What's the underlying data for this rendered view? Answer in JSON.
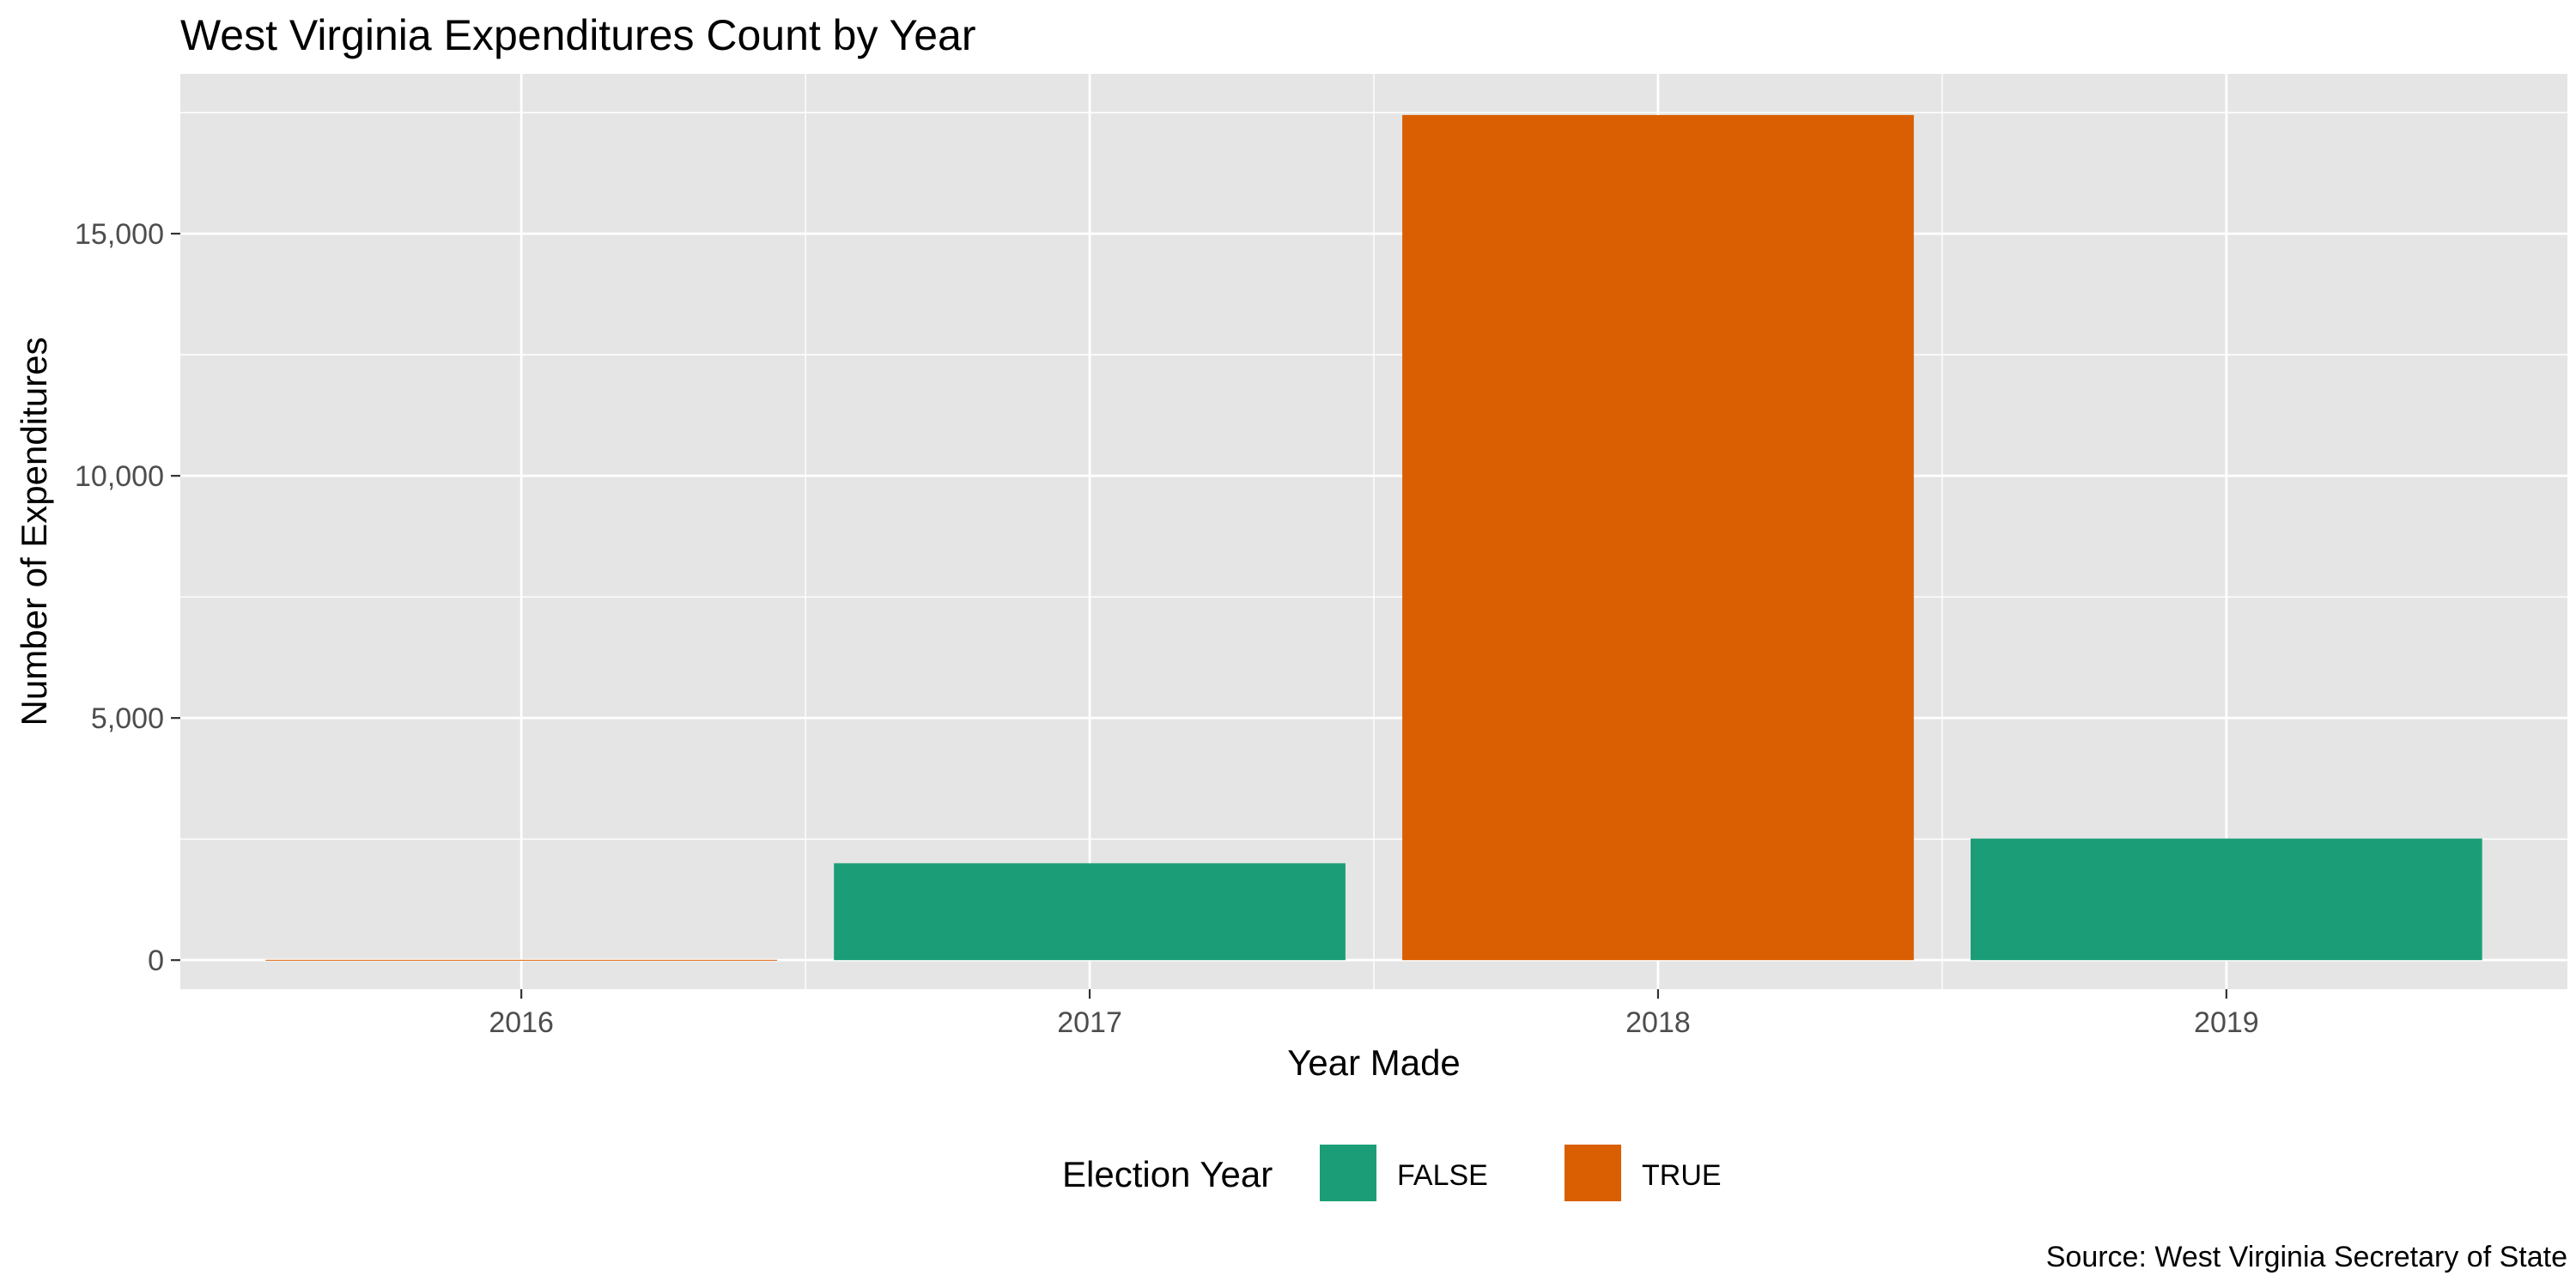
{
  "chart_data": {
    "type": "bar",
    "title": "West Virginia Expenditures Count by Year",
    "xlabel": "Year Made",
    "ylabel": "Number of Expenditures",
    "caption": "Source: West Virginia Secretary of State",
    "categories": [
      "2016",
      "2017",
      "2018",
      "2019"
    ],
    "values": [
      6,
      2000,
      17450,
      2510
    ],
    "groups": [
      "TRUE",
      "FALSE",
      "TRUE",
      "FALSE"
    ],
    "ylim": [
      -600,
      18300
    ],
    "yticks": [
      0,
      5000,
      10000,
      15000
    ],
    "ytick_labels": [
      "0",
      "5,000",
      "10,000",
      "15,000"
    ],
    "grid": true,
    "legend": {
      "title": "Election Year",
      "position": "bottom",
      "entries": [
        {
          "label": "FALSE",
          "color": "#1b9e77"
        },
        {
          "label": "TRUE",
          "color": "#d95f02"
        }
      ]
    },
    "colors": {
      "FALSE": "#1b9e77",
      "TRUE": "#d95f02"
    },
    "panel_background": "#e5e5e5",
    "grid_color": "#ffffff"
  }
}
